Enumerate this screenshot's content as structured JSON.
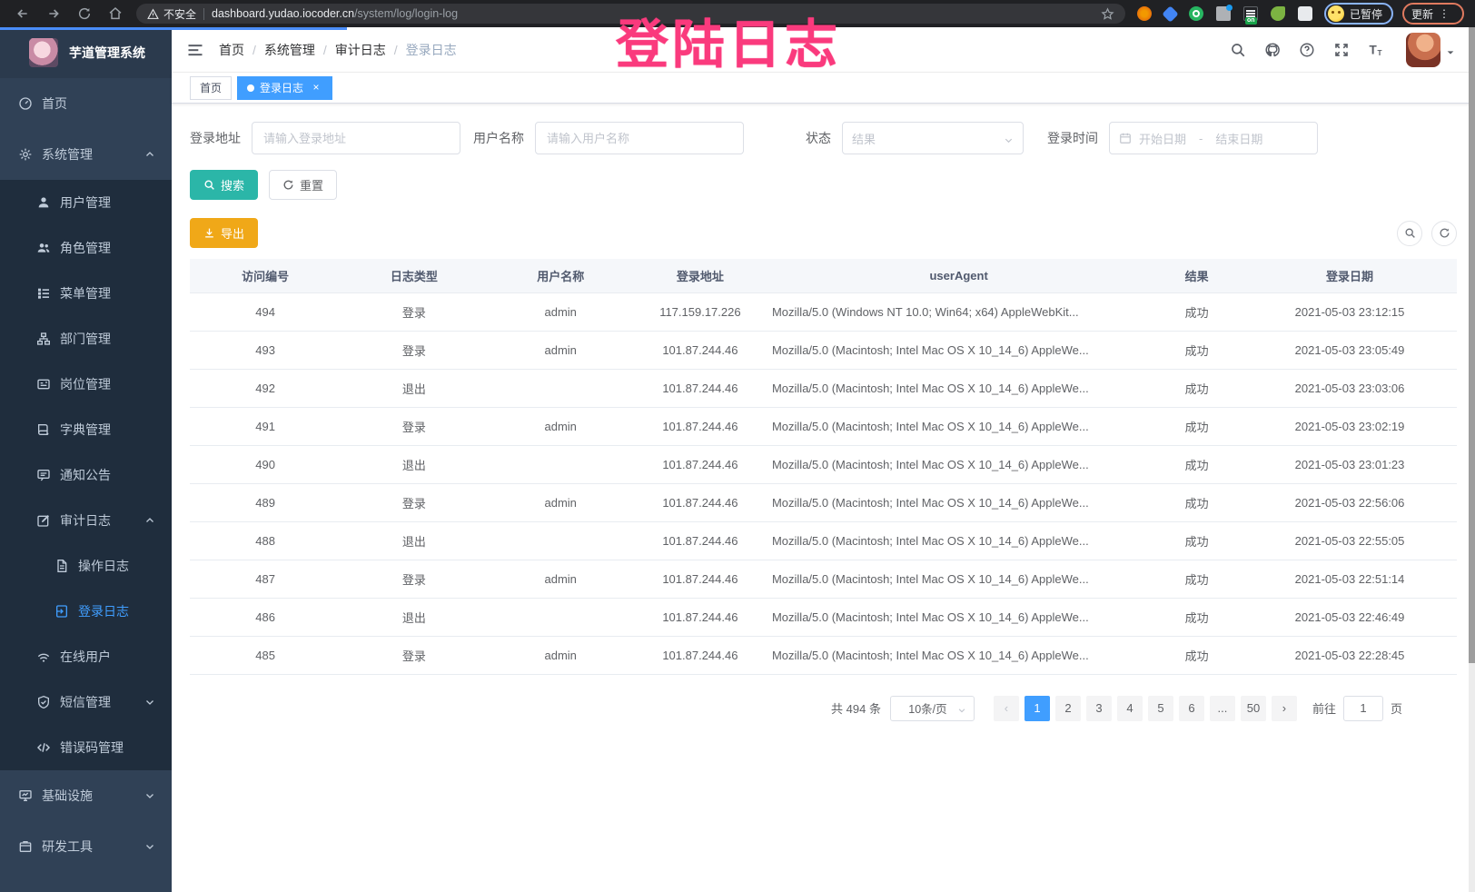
{
  "browser": {
    "security_label": "不安全",
    "url_host": "dashboard.yudao.iocoder.cn",
    "url_path": "/system/log/login-log",
    "extension_on_badge": "on",
    "paused_badge": "已暂停",
    "update_button": "更新"
  },
  "annotation": {
    "text": "登陆日志",
    "color": "#fa3a7d"
  },
  "sidebar": {
    "logo_title": "芋道管理系统",
    "menu": [
      {
        "key": "home",
        "label": "首页",
        "icon": "dashboard",
        "level": 0
      },
      {
        "key": "system",
        "label": "系统管理",
        "icon": "gear",
        "level": 0,
        "caret": "up"
      },
      {
        "key": "user",
        "label": "用户管理",
        "icon": "user",
        "level": 1
      },
      {
        "key": "role",
        "label": "角色管理",
        "icon": "users",
        "level": 1
      },
      {
        "key": "menu",
        "label": "菜单管理",
        "icon": "list",
        "level": 1
      },
      {
        "key": "dept",
        "label": "部门管理",
        "icon": "tree",
        "level": 1
      },
      {
        "key": "post",
        "label": "岗位管理",
        "icon": "idcard",
        "level": 1
      },
      {
        "key": "dict",
        "label": "字典管理",
        "icon": "book",
        "level": 1
      },
      {
        "key": "notice",
        "label": "通知公告",
        "icon": "message",
        "level": 1
      },
      {
        "key": "audit-log",
        "label": "审计日志",
        "icon": "edit",
        "level": 1,
        "caret": "up"
      },
      {
        "key": "operation-log",
        "label": "操作日志",
        "icon": "doc",
        "level": 2
      },
      {
        "key": "login-log",
        "label": "登录日志",
        "icon": "login",
        "level": 2,
        "active": true
      },
      {
        "key": "online-users",
        "label": "在线用户",
        "icon": "signal",
        "level": 1
      },
      {
        "key": "sms",
        "label": "短信管理",
        "icon": "checkcircle",
        "level": 1,
        "caret": "down"
      },
      {
        "key": "error-code",
        "label": "错误码管理",
        "icon": "code",
        "level": 1
      },
      {
        "key": "infrastructure",
        "label": "基础设施",
        "icon": "monitor",
        "level": 0,
        "caret": "down"
      },
      {
        "key": "dev-tools",
        "label": "研发工具",
        "icon": "tool",
        "level": 0,
        "caret": "down"
      }
    ]
  },
  "navbar": {
    "breadcrumb": [
      "首页",
      "系统管理",
      "审计日志",
      "登录日志"
    ]
  },
  "tags": {
    "home": "首页",
    "active_tab": "登录日志"
  },
  "filters": {
    "login_address_label": "登录地址",
    "login_address_placeholder": "请输入登录地址",
    "username_label": "用户名称",
    "username_placeholder": "请输入用户名称",
    "status_label": "状态",
    "status_placeholder": "结果",
    "login_time_label": "登录时间",
    "date_start_placeholder": "开始日期",
    "date_separator": "-",
    "date_end_placeholder": "结束日期",
    "search_button": "搜索",
    "reset_button": "重置",
    "export_button": "导出"
  },
  "table": {
    "columns": [
      "访问编号",
      "日志类型",
      "用户名称",
      "登录地址",
      "userAgent",
      "结果",
      "登录日期"
    ],
    "rows": [
      [
        "494",
        "登录",
        "admin",
        "117.159.17.226",
        "Mozilla/5.0 (Windows NT 10.0; Win64; x64) AppleWebKit...",
        "成功",
        "2021-05-03 23:12:15"
      ],
      [
        "493",
        "登录",
        "admin",
        "101.87.244.46",
        "Mozilla/5.0 (Macintosh; Intel Mac OS X 10_14_6) AppleWe...",
        "成功",
        "2021-05-03 23:05:49"
      ],
      [
        "492",
        "退出",
        "",
        "101.87.244.46",
        "Mozilla/5.0 (Macintosh; Intel Mac OS X 10_14_6) AppleWe...",
        "成功",
        "2021-05-03 23:03:06"
      ],
      [
        "491",
        "登录",
        "admin",
        "101.87.244.46",
        "Mozilla/5.0 (Macintosh; Intel Mac OS X 10_14_6) AppleWe...",
        "成功",
        "2021-05-03 23:02:19"
      ],
      [
        "490",
        "退出",
        "",
        "101.87.244.46",
        "Mozilla/5.0 (Macintosh; Intel Mac OS X 10_14_6) AppleWe...",
        "成功",
        "2021-05-03 23:01:23"
      ],
      [
        "489",
        "登录",
        "admin",
        "101.87.244.46",
        "Mozilla/5.0 (Macintosh; Intel Mac OS X 10_14_6) AppleWe...",
        "成功",
        "2021-05-03 22:56:06"
      ],
      [
        "488",
        "退出",
        "",
        "101.87.244.46",
        "Mozilla/5.0 (Macintosh; Intel Mac OS X 10_14_6) AppleWe...",
        "成功",
        "2021-05-03 22:55:05"
      ],
      [
        "487",
        "登录",
        "admin",
        "101.87.244.46",
        "Mozilla/5.0 (Macintosh; Intel Mac OS X 10_14_6) AppleWe...",
        "成功",
        "2021-05-03 22:51:14"
      ],
      [
        "486",
        "退出",
        "",
        "101.87.244.46",
        "Mozilla/5.0 (Macintosh; Intel Mac OS X 10_14_6) AppleWe...",
        "成功",
        "2021-05-03 22:46:49"
      ],
      [
        "485",
        "登录",
        "admin",
        "101.87.244.46",
        "Mozilla/5.0 (Macintosh; Intel Mac OS X 10_14_6) AppleWe...",
        "成功",
        "2021-05-03 22:28:45"
      ]
    ]
  },
  "pagination": {
    "total_text": "共 494 条",
    "page_size": "10条/页",
    "pages": [
      "1",
      "2",
      "3",
      "4",
      "5",
      "6",
      "...",
      "50"
    ],
    "active_page": "1",
    "goto_label": "前往",
    "goto_value": "1",
    "goto_suffix": "页"
  },
  "colors": {
    "accent": "#409eff",
    "search_button": "#2bb6a8",
    "export_button": "#f0a818",
    "sidebar_bg": "#304156",
    "submenu_bg": "#1f2d3d",
    "annotation": "#fa3a7d",
    "success_text": "#606266"
  }
}
